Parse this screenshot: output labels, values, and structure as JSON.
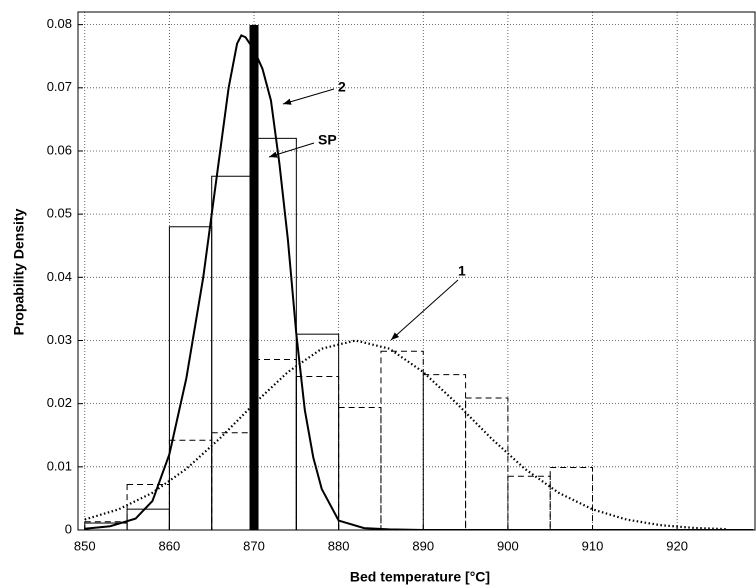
{
  "chart_data": {
    "type": "histogram",
    "xlabel": "Bed temperature [°C]",
    "ylabel": "Propability Density",
    "xlim": [
      849.2,
      929.2
    ],
    "ylim": [
      0,
      0.082
    ],
    "xticks": [
      850,
      860,
      870,
      880,
      890,
      900,
      910,
      920
    ],
    "yticks": [
      0,
      0.01,
      0.02,
      0.03,
      0.04,
      0.05,
      0.06,
      0.07,
      0.08
    ],
    "grid": true,
    "color": "#000000",
    "bins": [
      850,
      855,
      860,
      865,
      870,
      875,
      880,
      885,
      890,
      895,
      900,
      905,
      910
    ],
    "histograms": [
      {
        "line_style": "solid",
        "values": [
          0.0011,
          0.0033,
          0.048,
          0.056,
          0.062,
          0.031,
          0,
          0,
          0,
          0,
          0,
          0
        ]
      },
      {
        "line_style": "dashed",
        "values": [
          0.0013,
          0.0072,
          0.0142,
          0.0154,
          0.027,
          0.0243,
          0.0194,
          0.0283,
          0.0246,
          0.0209,
          0.0085,
          0.0099
        ]
      }
    ],
    "curves": [
      {
        "label": "1",
        "line_style": "dotted",
        "x": [
          850,
          854,
          858,
          862,
          866,
          870,
          874,
          878,
          882,
          886,
          890,
          894,
          898,
          902,
          906,
          910,
          914,
          918,
          922,
          926
        ],
        "y": [
          0.00166,
          0.00327,
          0.00589,
          0.00968,
          0.01455,
          0.01997,
          0.025,
          0.0287,
          0.03,
          0.0287,
          0.025,
          0.01997,
          0.01455,
          0.00968,
          0.00589,
          0.00327,
          0.00166,
          0.00077,
          0.00033,
          0.00013
        ]
      },
      {
        "label": "2",
        "line_style": "solid",
        "x": [
          850,
          853,
          856,
          858,
          860,
          862,
          864,
          866,
          867,
          868,
          868.5,
          869,
          870,
          871,
          872,
          873,
          874,
          875,
          876,
          877,
          878,
          880,
          883,
          886,
          890,
          900,
          910,
          920,
          929
        ],
        "y": [
          0.0002,
          0.0006,
          0.0018,
          0.0046,
          0.012,
          0.024,
          0.04,
          0.06,
          0.07,
          0.077,
          0.0783,
          0.078,
          0.076,
          0.073,
          0.068,
          0.058,
          0.046,
          0.031,
          0.019,
          0.0115,
          0.0065,
          0.0015,
          0.0003,
          0.0001,
          0,
          0,
          0,
          0,
          0
        ]
      }
    ],
    "setpoint": {
      "label": "SP",
      "x": 870
    }
  }
}
